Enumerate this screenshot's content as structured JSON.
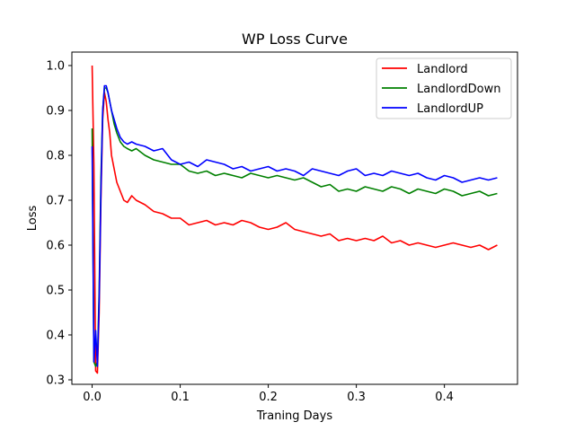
{
  "chart_data": {
    "type": "line",
    "title": "WP Loss Curve",
    "xlabel": "Traning Days",
    "ylabel": "Loss",
    "xlim": [
      -0.023,
      0.483
    ],
    "ylim": [
      0.29,
      1.03
    ],
    "xticks": [
      0.0,
      0.1,
      0.2,
      0.3,
      0.4
    ],
    "xtick_labels": [
      "0.0",
      "0.1",
      "0.2",
      "0.3",
      "0.4"
    ],
    "yticks": [
      0.3,
      0.4,
      0.5,
      0.6,
      0.7,
      0.8,
      0.9,
      1.0
    ],
    "ytick_labels": [
      "0.3",
      "0.4",
      "0.5",
      "0.6",
      "0.7",
      "0.8",
      "0.9",
      "1.0"
    ],
    "grid": false,
    "legend_position": "top-right",
    "series": [
      {
        "name": "Landlord",
        "color": "#ff0000",
        "x": [
          0.0,
          0.002,
          0.004,
          0.006,
          0.008,
          0.01,
          0.012,
          0.014,
          0.016,
          0.018,
          0.02,
          0.022,
          0.025,
          0.028,
          0.032,
          0.036,
          0.04,
          0.045,
          0.05,
          0.06,
          0.07,
          0.08,
          0.09,
          0.1,
          0.11,
          0.12,
          0.13,
          0.14,
          0.15,
          0.16,
          0.17,
          0.18,
          0.19,
          0.2,
          0.21,
          0.22,
          0.23,
          0.24,
          0.25,
          0.26,
          0.27,
          0.28,
          0.29,
          0.3,
          0.31,
          0.32,
          0.33,
          0.34,
          0.35,
          0.36,
          0.37,
          0.38,
          0.39,
          0.4,
          0.41,
          0.42,
          0.43,
          0.44,
          0.45,
          0.46
        ],
        "y": [
          1.0,
          0.78,
          0.32,
          0.315,
          0.45,
          0.7,
          0.88,
          0.94,
          0.92,
          0.88,
          0.85,
          0.8,
          0.77,
          0.74,
          0.72,
          0.7,
          0.695,
          0.71,
          0.7,
          0.69,
          0.675,
          0.67,
          0.66,
          0.66,
          0.645,
          0.65,
          0.655,
          0.645,
          0.65,
          0.645,
          0.655,
          0.65,
          0.64,
          0.635,
          0.64,
          0.65,
          0.635,
          0.63,
          0.625,
          0.62,
          0.625,
          0.61,
          0.615,
          0.61,
          0.615,
          0.61,
          0.62,
          0.605,
          0.61,
          0.6,
          0.605,
          0.6,
          0.595,
          0.6,
          0.605,
          0.6,
          0.595,
          0.6,
          0.59,
          0.6
        ]
      },
      {
        "name": "LandlordDown",
        "color": "#008000",
        "x": [
          0.0,
          0.002,
          0.004,
          0.006,
          0.008,
          0.01,
          0.012,
          0.014,
          0.016,
          0.018,
          0.02,
          0.022,
          0.025,
          0.028,
          0.032,
          0.036,
          0.04,
          0.045,
          0.05,
          0.06,
          0.07,
          0.08,
          0.09,
          0.1,
          0.11,
          0.12,
          0.13,
          0.14,
          0.15,
          0.16,
          0.17,
          0.18,
          0.19,
          0.2,
          0.21,
          0.22,
          0.23,
          0.24,
          0.25,
          0.26,
          0.27,
          0.28,
          0.29,
          0.3,
          0.31,
          0.32,
          0.33,
          0.34,
          0.35,
          0.36,
          0.37,
          0.38,
          0.39,
          0.4,
          0.41,
          0.42,
          0.43,
          0.44,
          0.45,
          0.46
        ],
        "y": [
          0.86,
          0.34,
          0.33,
          0.34,
          0.5,
          0.75,
          0.9,
          0.95,
          0.95,
          0.94,
          0.92,
          0.9,
          0.87,
          0.85,
          0.83,
          0.82,
          0.815,
          0.81,
          0.815,
          0.8,
          0.79,
          0.785,
          0.78,
          0.78,
          0.765,
          0.76,
          0.765,
          0.755,
          0.76,
          0.755,
          0.75,
          0.76,
          0.755,
          0.75,
          0.755,
          0.75,
          0.745,
          0.75,
          0.74,
          0.73,
          0.735,
          0.72,
          0.725,
          0.72,
          0.73,
          0.725,
          0.72,
          0.73,
          0.725,
          0.715,
          0.725,
          0.72,
          0.715,
          0.725,
          0.72,
          0.71,
          0.715,
          0.72,
          0.71,
          0.715
        ]
      },
      {
        "name": "LandlordUP",
        "color": "#0000ff",
        "x": [
          0.0,
          0.002,
          0.004,
          0.006,
          0.008,
          0.01,
          0.012,
          0.014,
          0.016,
          0.018,
          0.02,
          0.022,
          0.025,
          0.028,
          0.032,
          0.036,
          0.04,
          0.045,
          0.05,
          0.06,
          0.07,
          0.08,
          0.09,
          0.1,
          0.11,
          0.12,
          0.13,
          0.14,
          0.15,
          0.16,
          0.17,
          0.18,
          0.19,
          0.2,
          0.21,
          0.22,
          0.23,
          0.24,
          0.25,
          0.26,
          0.27,
          0.28,
          0.29,
          0.3,
          0.31,
          0.32,
          0.33,
          0.34,
          0.35,
          0.36,
          0.37,
          0.38,
          0.39,
          0.4,
          0.41,
          0.42,
          0.43,
          0.44,
          0.45,
          0.46
        ],
        "y": [
          0.82,
          0.34,
          0.41,
          0.33,
          0.48,
          0.72,
          0.9,
          0.955,
          0.955,
          0.94,
          0.92,
          0.9,
          0.88,
          0.86,
          0.84,
          0.83,
          0.825,
          0.83,
          0.825,
          0.82,
          0.81,
          0.815,
          0.79,
          0.78,
          0.785,
          0.775,
          0.79,
          0.785,
          0.78,
          0.77,
          0.775,
          0.765,
          0.77,
          0.775,
          0.765,
          0.77,
          0.765,
          0.755,
          0.77,
          0.765,
          0.76,
          0.755,
          0.765,
          0.77,
          0.755,
          0.76,
          0.755,
          0.765,
          0.76,
          0.755,
          0.76,
          0.75,
          0.745,
          0.755,
          0.75,
          0.74,
          0.745,
          0.75,
          0.745,
          0.75
        ]
      }
    ]
  }
}
